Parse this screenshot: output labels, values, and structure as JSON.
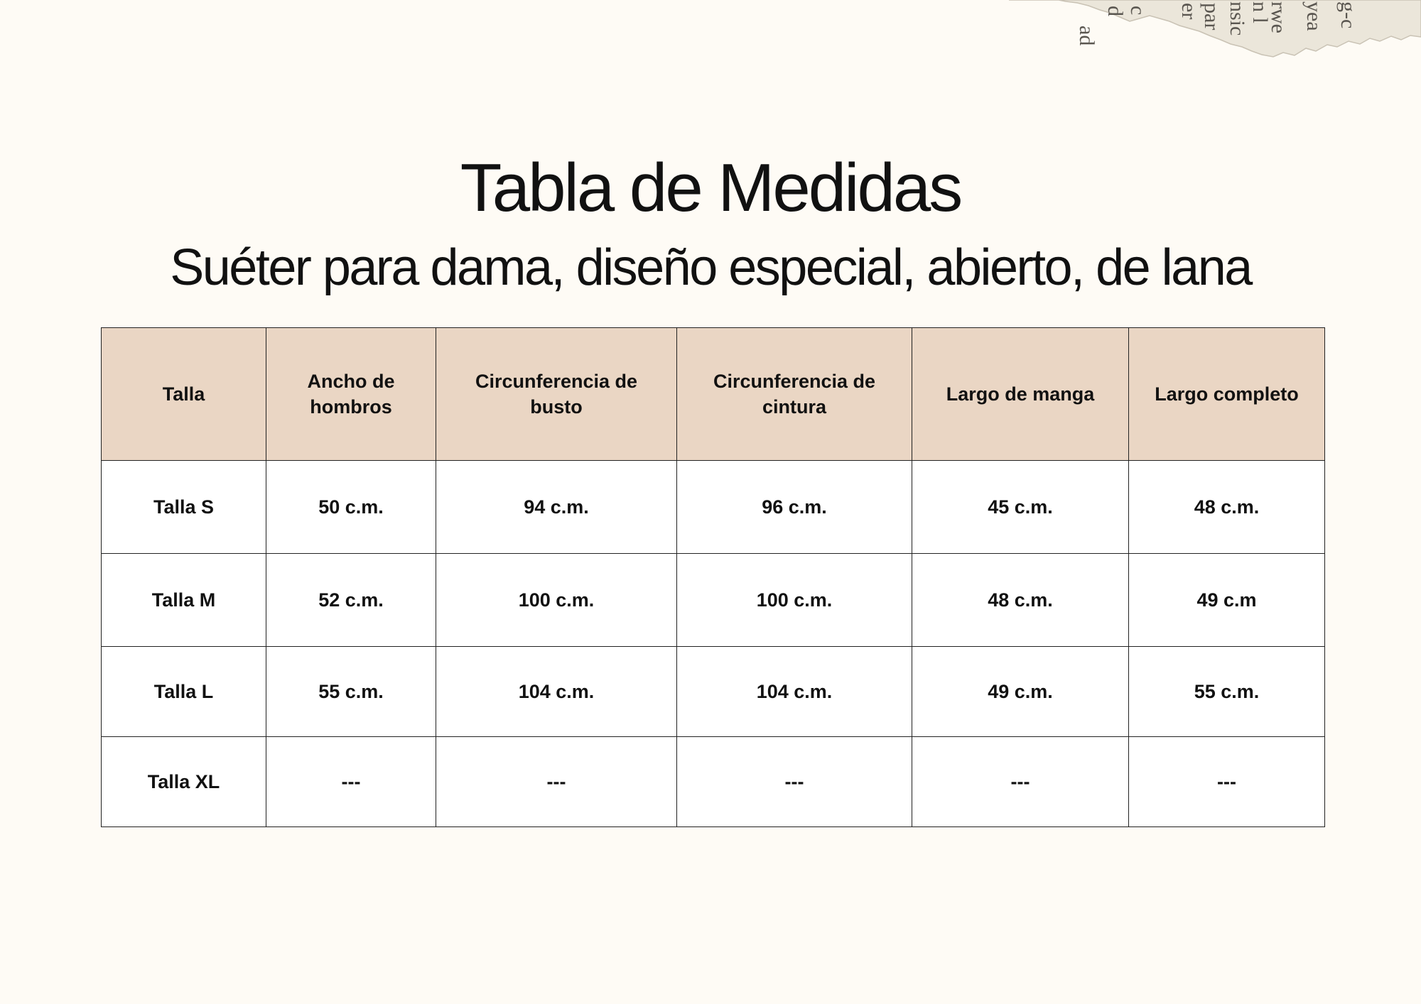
{
  "title": "Tabla de Medidas",
  "subtitle": "Suéter para dama, diseño especial, abierto, de lana",
  "table": {
    "headers": [
      "Talla",
      "Ancho de hombros",
      "Circunferencia de busto",
      "Circunferencia de cintura",
      "Largo de manga",
      "Largo completo"
    ],
    "rows": [
      [
        "Talla S",
        "50 c.m.",
        "94 c.m.",
        "96 c.m.",
        "45 c.m.",
        "48 c.m."
      ],
      [
        "Talla M",
        "52 c.m.",
        "100 c.m.",
        "100 c.m.",
        "48 c.m.",
        "49 c.m"
      ],
      [
        "Talla L",
        "55 c.m.",
        "104 c.m.",
        "104 c.m.",
        "49 c.m.",
        "55 c.m."
      ],
      [
        "Talla XL",
        "---",
        "---",
        "---",
        "---",
        "---"
      ]
    ]
  },
  "decoration": {
    "torn_paper_snippets": [
      "ad",
      "d",
      "c",
      "er",
      "par",
      "nsic",
      "n l",
      "rwe",
      "yea",
      "g-c"
    ]
  },
  "colors": {
    "background": "#fefbf5",
    "header_fill": "#ead6c4",
    "cell_fill": "#ffffff",
    "border": "#222222",
    "text": "#111111"
  }
}
